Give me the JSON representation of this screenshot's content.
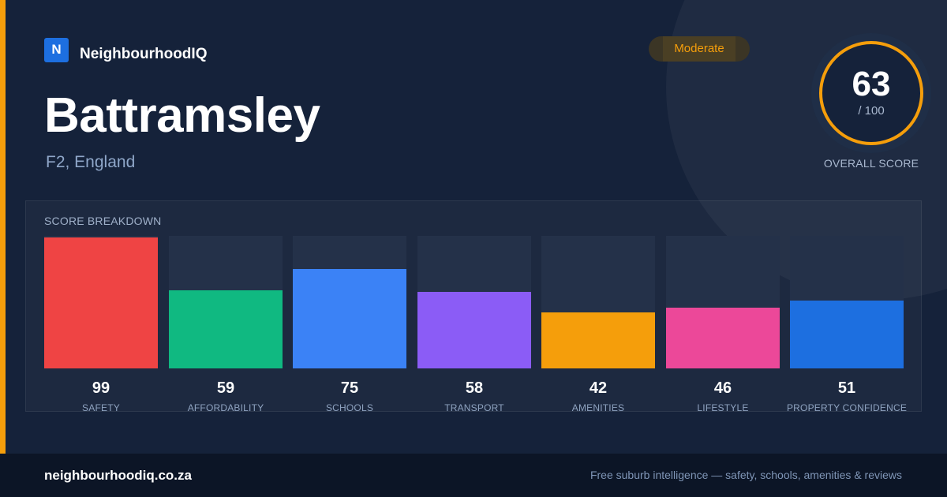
{
  "brand": {
    "logo_letter": "N",
    "name": "NeighbourhoodIQ",
    "accent_color": "#f59e0b",
    "logo_color": "#1d6fe0"
  },
  "suburb": {
    "name": "Battramsley",
    "location": "F2, England"
  },
  "rating": {
    "label": "Moderate",
    "color": "#f59e0b"
  },
  "overall": {
    "score": "63",
    "max": "/ 100",
    "caption": "OVERALL SCORE"
  },
  "breakdown": {
    "title": "SCORE BREAKDOWN",
    "categories": [
      {
        "label": "SAFETY",
        "value": "99",
        "score": 99,
        "color": "#ef4444"
      },
      {
        "label": "AFFORDABILITY",
        "value": "59",
        "score": 59,
        "color": "#10b981"
      },
      {
        "label": "SCHOOLS",
        "value": "75",
        "score": 75,
        "color": "#3b82f6"
      },
      {
        "label": "TRANSPORT",
        "value": "58",
        "score": 58,
        "color": "#8b5cf6"
      },
      {
        "label": "AMENITIES",
        "value": "42",
        "score": 42,
        "color": "#f59e0b"
      },
      {
        "label": "LIFESTYLE",
        "value": "46",
        "score": 46,
        "color": "#ec4899"
      },
      {
        "label": "PROPERTY CONFIDENCE",
        "value": "51",
        "score": 51,
        "color": "#1d6fe0"
      }
    ]
  },
  "footer": {
    "domain": "neighbourhoodiq.co.za",
    "tagline": "Free suburb intelligence — safety, schools, amenities & reviews"
  }
}
